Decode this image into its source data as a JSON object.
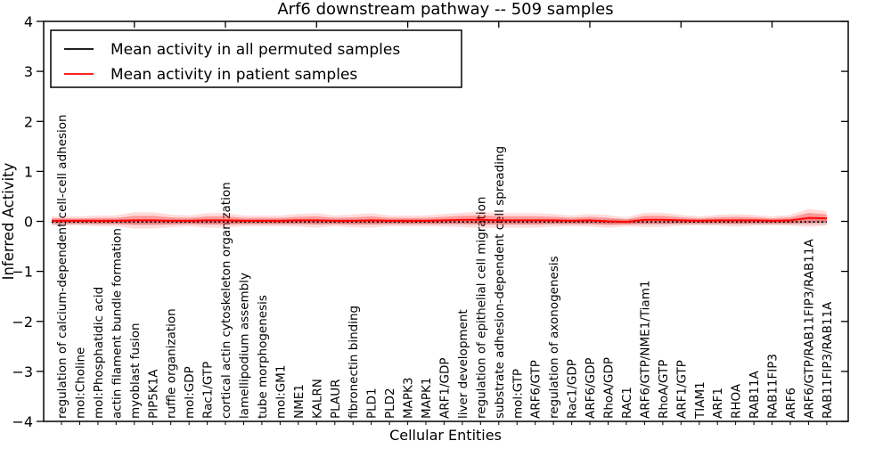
{
  "chart_data": {
    "type": "line",
    "title": "Arf6 downstream pathway -- 509 samples",
    "xlabel": "Cellular Entities",
    "ylabel": "Inferred Activity",
    "ylim": [
      -4,
      4
    ],
    "yticks": {
      "values": [
        4,
        3,
        2,
        1,
        0,
        -1,
        -2,
        -3,
        -4
      ],
      "labels": [
        "4",
        "3",
        "2",
        "1",
        "0",
        "−1",
        "−2",
        "−3",
        "−4"
      ]
    },
    "xtick_positions": [
      5,
      10,
      15,
      20,
      25,
      30,
      35,
      40
    ],
    "grid": false,
    "legend": {
      "position": "upper left"
    },
    "categories": [
      "regulation of calcium-dependent cell-cell adhesion",
      "mol:Choline",
      "mol:Phosphatidic acid",
      "actin filament bundle formation",
      "myoblast fusion",
      "PIP5K1A",
      "ruffle organization",
      "mol:GDP",
      "Rac1/GTP",
      "cortical actin cytoskeleton organization",
      "lamellipodium assembly",
      "tube morphogenesis",
      "mol:GM1",
      "NME1",
      "KALRN",
      "PLAUR",
      "fibronectin binding",
      "PLD1",
      "PLD2",
      "MAPK3",
      "MAPK1",
      "ARF1/GDP",
      "liver development",
      "regulation of epithelial cell migration",
      "substrate adhesion-dependent cell spreading",
      "mol:GTP",
      "ARF6/GTP",
      "regulation of axonogenesis",
      "Rac1/GDP",
      "ARF6/GDP",
      "RhoA/GDP",
      "RAC1",
      "ARF6/GTP/NME1/Tiam1",
      "RhoA/GTP",
      "ARF1/GTP",
      "TIAM1",
      "ARF1",
      "RHOA",
      "RAB11A",
      "RAB11FIP3",
      "ARF6",
      "ARF6/GTP/RAB11FIP3/RAB11A",
      "RAB11FIP3/RAB11A"
    ],
    "series": [
      {
        "name": "Mean activity in all permuted samples",
        "color": "#000000",
        "line_style": "dotted",
        "values": [
          -0.01,
          -0.01,
          -0.01,
          -0.01,
          -0.01,
          -0.01,
          -0.01,
          -0.01,
          -0.01,
          -0.01,
          -0.01,
          -0.01,
          -0.01,
          -0.01,
          -0.01,
          -0.01,
          -0.01,
          -0.01,
          -0.01,
          -0.01,
          -0.01,
          -0.01,
          -0.01,
          -0.01,
          -0.01,
          -0.01,
          -0.01,
          -0.01,
          -0.01,
          -0.01,
          -0.01,
          -0.01,
          -0.01,
          -0.01,
          -0.01,
          -0.01,
          -0.01,
          -0.01,
          -0.01,
          -0.01,
          -0.01,
          -0.01,
          -0.01
        ],
        "band_halfwidth": [
          0.05,
          0.05,
          0.05,
          0.05,
          0.05,
          0.05,
          0.05,
          0.05,
          0.05,
          0.05,
          0.05,
          0.05,
          0.05,
          0.05,
          0.05,
          0.05,
          0.05,
          0.05,
          0.05,
          0.05,
          0.05,
          0.05,
          0.05,
          0.05,
          0.05,
          0.05,
          0.05,
          0.05,
          0.05,
          0.05,
          0.05,
          0.05,
          0.05,
          0.05,
          0.05,
          0.05,
          0.05,
          0.05,
          0.05,
          0.05,
          0.05,
          0.05,
          0.05
        ]
      },
      {
        "name": "Mean activity in patient samples",
        "color": "#ff0000",
        "line_style": "solid",
        "values": [
          0.01,
          0.01,
          0.01,
          0.01,
          0.02,
          0.02,
          0.01,
          0.01,
          0.02,
          0.02,
          0.01,
          0.01,
          0.01,
          0.02,
          0.02,
          0.01,
          0.01,
          0.02,
          0.01,
          0.01,
          0.01,
          0.02,
          0.03,
          0.03,
          0.02,
          0.02,
          0.02,
          0.02,
          0.01,
          0.02,
          0.0,
          -0.01,
          0.03,
          0.03,
          0.02,
          0.01,
          0.02,
          0.02,
          0.02,
          0.01,
          0.02,
          0.07,
          0.06
        ],
        "band_halfwidth": [
          0.05,
          0.05,
          0.06,
          0.06,
          0.09,
          0.09,
          0.07,
          0.06,
          0.08,
          0.08,
          0.06,
          0.06,
          0.06,
          0.07,
          0.08,
          0.06,
          0.07,
          0.08,
          0.06,
          0.06,
          0.06,
          0.07,
          0.08,
          0.09,
          0.08,
          0.08,
          0.08,
          0.07,
          0.06,
          0.07,
          0.07,
          0.05,
          0.08,
          0.08,
          0.06,
          0.05,
          0.06,
          0.07,
          0.06,
          0.05,
          0.06,
          0.1,
          0.08
        ]
      }
    ],
    "colors": {
      "patient_line": "#ff0000",
      "permuted_line": "#000000",
      "patient_band_inner": "rgba(255,0,0,0.30)",
      "patient_band_outer": "rgba(255,0,0,0.14)",
      "permuted_band": "rgba(150,150,150,0.35)"
    }
  }
}
